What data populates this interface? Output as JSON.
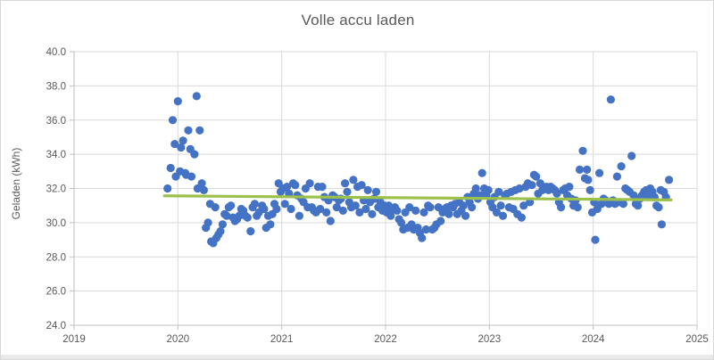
{
  "chart": {
    "title": "Volle accu laden",
    "ylabel": "Geladen (kWh)"
  },
  "colors": {
    "point": "#4472C4",
    "trendline": "#9CC14B",
    "gridline": "#D9D9D9",
    "axis_line": "#BFBFBF",
    "text": "#595959",
    "background": "#FFFFFF"
  },
  "chart_data": {
    "type": "scatter",
    "title": "Volle accu laden",
    "xlabel": "",
    "ylabel": "Geladen (kWh)",
    "xlim": [
      2019,
      2025
    ],
    "ylim": [
      24.0,
      40.0
    ],
    "grid": true,
    "legend": "none",
    "x_ticks": [
      2019,
      2020,
      2021,
      2022,
      2023,
      2024,
      2025
    ],
    "x_tick_labels": [
      "2019",
      "2020",
      "2021",
      "2022",
      "2023",
      "2024",
      "2025"
    ],
    "y_ticks": [
      24,
      26,
      28,
      30,
      32,
      34,
      36,
      38,
      40
    ],
    "y_tick_labels": [
      "24.0",
      "26.0",
      "28.0",
      "30.0",
      "32.0",
      "34.0",
      "36.0",
      "38.0",
      "40.0"
    ],
    "series": [
      {
        "name": "Geladen (kWh)",
        "marker": "circle",
        "color": "#4472C4",
        "points": [
          [
            2019.9,
            32.0
          ],
          [
            2019.93,
            33.2
          ],
          [
            2019.95,
            36.0
          ],
          [
            2019.97,
            34.6
          ],
          [
            2019.98,
            32.7
          ],
          [
            2020.0,
            37.1
          ],
          [
            2020.02,
            33.0
          ],
          [
            2020.03,
            34.4
          ],
          [
            2020.05,
            34.8
          ],
          [
            2020.07,
            32.9
          ],
          [
            2020.08,
            32.8
          ],
          [
            2020.1,
            35.4
          ],
          [
            2020.12,
            34.3
          ],
          [
            2020.13,
            32.7
          ],
          [
            2020.16,
            34.0
          ],
          [
            2020.18,
            37.4
          ],
          [
            2020.19,
            32.0
          ],
          [
            2020.21,
            35.4
          ],
          [
            2020.23,
            32.3
          ],
          [
            2020.25,
            31.9
          ],
          [
            2020.27,
            29.7
          ],
          [
            2020.29,
            30.0
          ],
          [
            2020.31,
            31.1
          ],
          [
            2020.32,
            28.9
          ],
          [
            2020.34,
            28.8
          ],
          [
            2020.36,
            30.9
          ],
          [
            2020.37,
            29.1
          ],
          [
            2020.39,
            29.3
          ],
          [
            2020.41,
            29.5
          ],
          [
            2020.43,
            29.9
          ],
          [
            2020.45,
            30.5
          ],
          [
            2020.47,
            30.4
          ],
          [
            2020.49,
            30.9
          ],
          [
            2020.51,
            31.0
          ],
          [
            2020.53,
            30.3
          ],
          [
            2020.55,
            30.1
          ],
          [
            2020.57,
            30.2
          ],
          [
            2020.59,
            30.4
          ],
          [
            2020.61,
            30.8
          ],
          [
            2020.63,
            30.7
          ],
          [
            2020.65,
            30.4
          ],
          [
            2020.67,
            30.3
          ],
          [
            2020.7,
            29.5
          ],
          [
            2020.72,
            30.9
          ],
          [
            2020.74,
            31.1
          ],
          [
            2020.76,
            30.4
          ],
          [
            2020.78,
            30.6
          ],
          [
            2020.81,
            31.0
          ],
          [
            2020.83,
            30.8
          ],
          [
            2020.85,
            29.7
          ],
          [
            2020.87,
            30.4
          ],
          [
            2020.89,
            29.9
          ],
          [
            2020.91,
            30.5
          ],
          [
            2020.93,
            31.1
          ],
          [
            2020.95,
            30.8
          ],
          [
            2020.97,
            32.3
          ],
          [
            2020.99,
            31.8
          ],
          [
            2021.01,
            32.0
          ],
          [
            2021.03,
            31.1
          ],
          [
            2021.05,
            32.1
          ],
          [
            2021.07,
            31.7
          ],
          [
            2021.09,
            30.8
          ],
          [
            2021.11,
            32.3
          ],
          [
            2021.13,
            32.2
          ],
          [
            2021.15,
            31.6
          ],
          [
            2021.17,
            30.4
          ],
          [
            2021.19,
            31.4
          ],
          [
            2021.21,
            31.2
          ],
          [
            2021.23,
            32.0
          ],
          [
            2021.25,
            30.9
          ],
          [
            2021.27,
            32.3
          ],
          [
            2021.29,
            30.9
          ],
          [
            2021.31,
            30.7
          ],
          [
            2021.33,
            30.6
          ],
          [
            2021.35,
            32.1
          ],
          [
            2021.37,
            30.8
          ],
          [
            2021.39,
            32.1
          ],
          [
            2021.41,
            31.5
          ],
          [
            2021.43,
            30.6
          ],
          [
            2021.45,
            31.3
          ],
          [
            2021.47,
            30.1
          ],
          [
            2021.49,
            31.6
          ],
          [
            2021.51,
            31.5
          ],
          [
            2021.53,
            30.9
          ],
          [
            2021.55,
            31.3
          ],
          [
            2021.57,
            31.4
          ],
          [
            2021.59,
            30.7
          ],
          [
            2021.61,
            32.3
          ],
          [
            2021.63,
            31.8
          ],
          [
            2021.65,
            31.2
          ],
          [
            2021.67,
            30.9
          ],
          [
            2021.69,
            32.5
          ],
          [
            2021.71,
            31.0
          ],
          [
            2021.73,
            32.1
          ],
          [
            2021.75,
            30.6
          ],
          [
            2021.77,
            32.2
          ],
          [
            2021.79,
            31.3
          ],
          [
            2021.81,
            30.8
          ],
          [
            2021.83,
            31.9
          ],
          [
            2021.85,
            31.2
          ],
          [
            2021.87,
            30.5
          ],
          [
            2021.89,
            31.4
          ],
          [
            2021.91,
            31.8
          ],
          [
            2021.93,
            30.9
          ],
          [
            2021.95,
            31.2
          ],
          [
            2021.97,
            30.7
          ],
          [
            2021.99,
            31.0
          ],
          [
            2022.01,
            30.6
          ],
          [
            2022.03,
            31.0
          ],
          [
            2022.05,
            30.4
          ],
          [
            2022.07,
            30.8
          ],
          [
            2022.09,
            30.9
          ],
          [
            2022.11,
            30.7
          ],
          [
            2022.13,
            30.2
          ],
          [
            2022.15,
            30.0
          ],
          [
            2022.17,
            29.6
          ],
          [
            2022.19,
            30.6
          ],
          [
            2022.21,
            29.7
          ],
          [
            2022.23,
            30.9
          ],
          [
            2022.25,
            29.9
          ],
          [
            2022.27,
            29.6
          ],
          [
            2022.29,
            30.7
          ],
          [
            2022.31,
            29.7
          ],
          [
            2022.33,
            29.4
          ],
          [
            2022.35,
            29.1
          ],
          [
            2022.37,
            30.6
          ],
          [
            2022.39,
            29.6
          ],
          [
            2022.41,
            31.0
          ],
          [
            2022.43,
            30.9
          ],
          [
            2022.45,
            29.6
          ],
          [
            2022.47,
            29.7
          ],
          [
            2022.49,
            29.9
          ],
          [
            2022.51,
            30.9
          ],
          [
            2022.53,
            30.1
          ],
          [
            2022.55,
            30.6
          ],
          [
            2022.57,
            30.8
          ],
          [
            2022.59,
            30.9
          ],
          [
            2022.61,
            30.5
          ],
          [
            2022.63,
            31.0
          ],
          [
            2022.65,
            30.9
          ],
          [
            2022.67,
            31.1
          ],
          [
            2022.69,
            30.5
          ],
          [
            2022.71,
            31.2
          ],
          [
            2022.73,
            30.7
          ],
          [
            2022.75,
            31.0
          ],
          [
            2022.77,
            30.4
          ],
          [
            2022.79,
            31.5
          ],
          [
            2022.81,
            31.2
          ],
          [
            2022.83,
            30.9
          ],
          [
            2022.85,
            31.7
          ],
          [
            2022.87,
            32.0
          ],
          [
            2022.89,
            31.4
          ],
          [
            2022.91,
            31.6
          ],
          [
            2022.93,
            32.9
          ],
          [
            2022.95,
            32.0
          ],
          [
            2022.97,
            31.6
          ],
          [
            2022.99,
            31.9
          ],
          [
            2023.01,
            31.2
          ],
          [
            2023.03,
            30.9
          ],
          [
            2023.05,
            31.5
          ],
          [
            2023.07,
            30.6
          ],
          [
            2023.09,
            31.8
          ],
          [
            2023.11,
            31.0
          ],
          [
            2023.13,
            30.4
          ],
          [
            2023.15,
            31.6
          ],
          [
            2023.17,
            31.7
          ],
          [
            2023.19,
            30.9
          ],
          [
            2023.21,
            31.8
          ],
          [
            2023.23,
            30.8
          ],
          [
            2023.25,
            31.9
          ],
          [
            2023.27,
            30.5
          ],
          [
            2023.29,
            32.0
          ],
          [
            2023.31,
            30.3
          ],
          [
            2023.33,
            31.0
          ],
          [
            2023.35,
            32.1
          ],
          [
            2023.37,
            32.3
          ],
          [
            2023.39,
            31.2
          ],
          [
            2023.41,
            32.2
          ],
          [
            2023.43,
            32.8
          ],
          [
            2023.45,
            32.7
          ],
          [
            2023.47,
            31.7
          ],
          [
            2023.49,
            32.3
          ],
          [
            2023.51,
            31.9
          ],
          [
            2023.53,
            32.0
          ],
          [
            2023.55,
            32.1
          ],
          [
            2023.57,
            31.9
          ],
          [
            2023.59,
            32.1
          ],
          [
            2023.61,
            32.0
          ],
          [
            2023.63,
            31.9
          ],
          [
            2023.65,
            31.7
          ],
          [
            2023.67,
            31.2
          ],
          [
            2023.69,
            30.9
          ],
          [
            2023.71,
            31.9
          ],
          [
            2023.73,
            32.0
          ],
          [
            2023.75,
            31.6
          ],
          [
            2023.77,
            32.1
          ],
          [
            2023.79,
            31.4
          ],
          [
            2023.81,
            31.0
          ],
          [
            2023.83,
            31.3
          ],
          [
            2023.85,
            30.9
          ],
          [
            2023.87,
            33.1
          ],
          [
            2023.9,
            34.2
          ],
          [
            2023.92,
            32.6
          ],
          [
            2023.94,
            33.1
          ],
          [
            2023.95,
            32.5
          ],
          [
            2023.97,
            31.9
          ],
          [
            2023.99,
            30.6
          ],
          [
            2024.01,
            31.2
          ],
          [
            2024.02,
            29.0
          ],
          [
            2024.04,
            30.8
          ],
          [
            2024.06,
            32.9
          ],
          [
            2024.08,
            31.1
          ],
          [
            2024.1,
            31.4
          ],
          [
            2024.12,
            31.3
          ],
          [
            2024.15,
            31.1
          ],
          [
            2024.17,
            37.2
          ],
          [
            2024.19,
            31.3
          ],
          [
            2024.21,
            31.1
          ],
          [
            2024.23,
            32.7
          ],
          [
            2024.25,
            31.2
          ],
          [
            2024.27,
            33.3
          ],
          [
            2024.29,
            31.1
          ],
          [
            2024.31,
            32.0
          ],
          [
            2024.33,
            31.9
          ],
          [
            2024.35,
            31.8
          ],
          [
            2024.37,
            33.9
          ],
          [
            2024.39,
            31.6
          ],
          [
            2024.41,
            31.1
          ],
          [
            2024.43,
            31.0
          ],
          [
            2024.45,
            31.4
          ],
          [
            2024.47,
            31.6
          ],
          [
            2024.49,
            31.8
          ],
          [
            2024.51,
            31.9
          ],
          [
            2024.53,
            31.6
          ],
          [
            2024.55,
            32.0
          ],
          [
            2024.57,
            31.8
          ],
          [
            2024.59,
            31.5
          ],
          [
            2024.61,
            31.0
          ],
          [
            2024.63,
            30.9
          ],
          [
            2024.65,
            31.9
          ],
          [
            2024.66,
            29.9
          ],
          [
            2024.68,
            31.8
          ],
          [
            2024.7,
            31.5
          ],
          [
            2024.73,
            32.5
          ]
        ]
      }
    ],
    "trendline": {
      "color": "#9CC14B",
      "x1": 2019.87,
      "y1": 31.57,
      "x2": 2024.75,
      "y2": 31.33
    }
  }
}
